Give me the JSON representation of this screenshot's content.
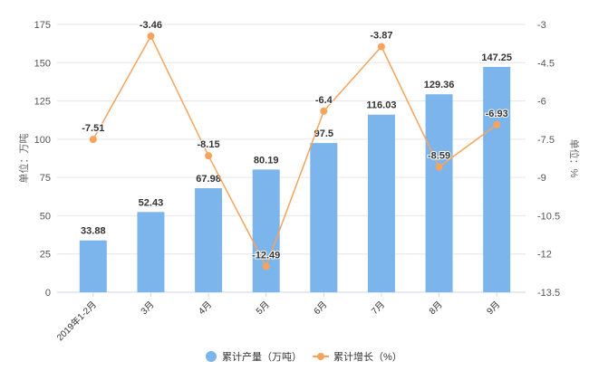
{
  "chart_data": {
    "type": "bar+line",
    "categories": [
      "2019年1-2月",
      "3月",
      "4月",
      "5月",
      "6月",
      "7月",
      "8月",
      "9月"
    ],
    "series": [
      {
        "name": "累计产量（万吨）",
        "type": "bar",
        "axis": "left",
        "color": "#7cb5ec",
        "values": [
          33.88,
          52.43,
          67.98,
          80.19,
          97.5,
          116.03,
          129.36,
          147.25
        ]
      },
      {
        "name": "累计增长（%）",
        "type": "line",
        "axis": "right",
        "color": "#f7a35c",
        "values": [
          -7.51,
          -3.46,
          -8.15,
          -12.49,
          -6.4,
          -3.87,
          -8.59,
          -6.93
        ]
      }
    ],
    "ylabel": "单位：万吨",
    "y2label": "单位：%",
    "ylim": [
      0,
      175
    ],
    "yticks": [
      0,
      25,
      50,
      75,
      100,
      125,
      150,
      175
    ],
    "y2lim": [
      -13.5,
      -3
    ],
    "y2ticks": [
      -13.5,
      -12,
      -10.5,
      -9,
      -7.5,
      -6,
      -4.5,
      -3
    ],
    "grid": true,
    "legend": "bottom"
  }
}
